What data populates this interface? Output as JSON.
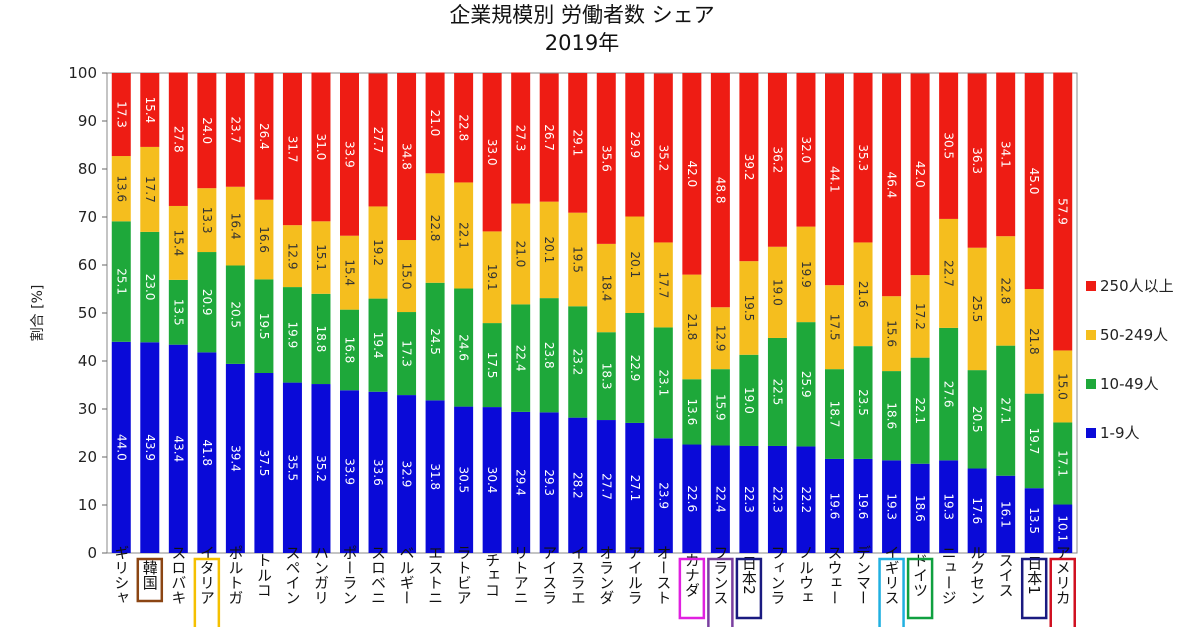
{
  "chart_data": {
    "type": "bar",
    "stacked": true,
    "title": "企業規模別 労働者数 シェア",
    "subtitle": "2019年",
    "ylabel": "割合 [%]",
    "xlabel": "",
    "ylim": [
      0,
      100
    ],
    "yticks": [
      "0",
      "10",
      "20",
      "30",
      "40",
      "50",
      "60",
      "70",
      "80",
      "90",
      "100"
    ],
    "grid": false,
    "legend_position": "right",
    "categories": [
      "ギリシャ",
      "韓国",
      "スロバキ",
      "イタリア",
      "ポルトガ",
      "トルコ",
      "スペイン",
      "ハンガリ",
      "ポーラン",
      "スロベニ",
      "ベルギー",
      "エストニ",
      "ラトビア",
      "チェコ",
      "リトアニ",
      "アイスラ",
      "イスラエ",
      "オランダ",
      "アイルラ",
      "オースト",
      "カナダ",
      "フランス",
      "日本2",
      "フィンラ",
      "ノルウェ",
      "スウェー",
      "デンマー",
      "イギリス",
      "ドイツ",
      "ニュージ",
      "ルクセン",
      "スイス",
      "日本1",
      "アメリカ"
    ],
    "highlight_boxes": [
      {
        "category": "韓国",
        "color": "#8B4513"
      },
      {
        "category": "イタリア",
        "color": "#F5C000"
      },
      {
        "category": "カナダ",
        "color": "#E020E0"
      },
      {
        "category": "フランス",
        "color": "#7A3FA0"
      },
      {
        "category": "日本2",
        "color": "#1A1A80"
      },
      {
        "category": "イギリス",
        "color": "#20B0E0"
      },
      {
        "category": "ドイツ",
        "color": "#10A040"
      },
      {
        "category": "日本1",
        "color": "#1A1A80"
      },
      {
        "category": "アメリカ",
        "color": "#D01020"
      }
    ],
    "series": [
      {
        "name": "1-9人",
        "color": "#0A0AD8",
        "values": [
          44.0,
          43.9,
          43.4,
          41.8,
          39.4,
          37.5,
          35.5,
          35.2,
          33.9,
          33.6,
          32.9,
          31.8,
          30.5,
          30.4,
          29.4,
          29.3,
          28.2,
          27.7,
          27.1,
          23.9,
          22.6,
          22.4,
          22.3,
          22.3,
          22.2,
          19.6,
          19.6,
          19.3,
          18.6,
          19.3,
          17.6,
          16.1,
          13.5,
          10.1
        ],
        "labels": [
          "44.0",
          "43.9",
          "43.4",
          "41.8",
          "39.4",
          "37.5",
          "35.5",
          "35.2",
          "33.9",
          "33.6",
          "32.9",
          "31.8",
          "30.5",
          "30.4",
          "29.4",
          "29.3",
          "28.2",
          "27.7",
          "27.1",
          "23.9",
          "22.6",
          "22.4",
          "22.3",
          "22.3",
          "22.2",
          "19.6",
          "19.6",
          "19.3",
          "18.6",
          "19.3",
          "17.6",
          "16.1",
          "13.5",
          "10.1"
        ]
      },
      {
        "name": "10-49人",
        "color": "#1EA83A",
        "values": [
          25.1,
          23.0,
          13.5,
          20.9,
          20.5,
          19.5,
          19.9,
          18.8,
          16.8,
          19.4,
          17.3,
          24.5,
          24.6,
          17.5,
          22.4,
          23.8,
          23.2,
          18.3,
          22.9,
          23.1,
          13.6,
          15.9,
          19.0,
          22.5,
          25.9,
          18.7,
          23.5,
          18.6,
          22.1,
          27.6,
          20.5,
          27.1,
          19.7,
          17.1
        ],
        "labels": [
          "25.1",
          "23.0",
          "13.5",
          "20.9",
          "20.5",
          "19.5",
          "19.9",
          "18.8",
          "16.8",
          "19.4",
          "17.3",
          "24.5",
          "24.6",
          "17.5",
          "22.4",
          "23.8",
          "23.2",
          "18.3",
          "22.9",
          "23.1",
          "13.6",
          "15.9",
          "19.0",
          "22.5",
          "25.9",
          "18.7",
          "23.5",
          "18.6",
          "22.1",
          "27.6",
          "20.5",
          "27.1",
          "19.7",
          "17.1"
        ]
      },
      {
        "name": "50-249人",
        "color": "#F5BE1E",
        "values": [
          13.6,
          17.7,
          15.4,
          13.3,
          16.4,
          16.6,
          12.9,
          15.1,
          15.4,
          19.2,
          15.0,
          22.8,
          22.1,
          19.1,
          21.0,
          20.1,
          19.5,
          18.4,
          20.1,
          17.7,
          21.8,
          12.9,
          19.5,
          19.0,
          19.9,
          17.5,
          21.6,
          15.6,
          17.2,
          22.7,
          25.5,
          22.8,
          21.8,
          15.0
        ],
        "labels": [
          "13.6",
          "17.7",
          "15.4",
          "13.3",
          "16.4",
          "16.6",
          "12.9",
          "15.1",
          "15.4",
          "19.2",
          "15.0",
          "22.8",
          "22.1",
          "19.1",
          "21.0",
          "20.1",
          "19.5",
          "18.4",
          "20.1",
          "17.7",
          "21.8",
          "12.9",
          "19.5",
          "19.0",
          "19.9",
          "17.5",
          "21.6",
          "15.6",
          "17.2",
          "22.7",
          "25.5",
          "22.8",
          "21.8",
          "15.0"
        ]
      },
      {
        "name": "250人以上",
        "color": "#EE1C14",
        "values": [
          17.3,
          15.4,
          27.8,
          24.0,
          23.7,
          26.4,
          31.7,
          31.0,
          33.9,
          27.7,
          34.8,
          21.0,
          22.8,
          33.0,
          27.3,
          26.7,
          29.1,
          35.6,
          29.9,
          35.2,
          42.0,
          48.8,
          39.2,
          36.2,
          32.0,
          44.1,
          35.3,
          46.4,
          42.0,
          30.5,
          36.3,
          34.1,
          45.0,
          57.9
        ],
        "labels": [
          "17.3",
          "15.4",
          "27.8",
          "24.0",
          "23.7",
          "26.4",
          "31.7",
          "31.0",
          "33.9",
          "27.7",
          "34.8",
          "21.0",
          "22.8",
          "33.0",
          "27.3",
          "26.7",
          "29.1",
          "35.6",
          "29.9",
          "35.2",
          "42.0",
          "48.8",
          "39.2",
          "36.2",
          "32.0",
          "44.1",
          "35.3",
          "46.4",
          "42.0",
          "30.5",
          "36.3",
          "34.1",
          "45.0",
          "57.9"
        ]
      }
    ],
    "legend": [
      {
        "label": "250人以上",
        "color": "#EE1C14"
      },
      {
        "label": "50-249人",
        "color": "#F5BE1E"
      },
      {
        "label": "10-49人",
        "color": "#1EA83A"
      },
      {
        "label": "1-9人",
        "color": "#0A0AD8"
      }
    ]
  }
}
